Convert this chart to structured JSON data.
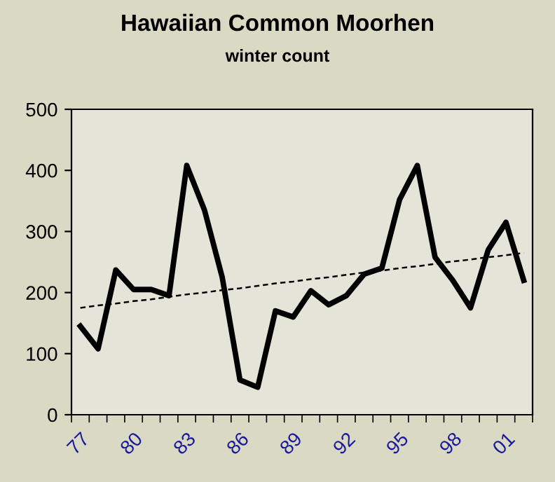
{
  "chart_data": {
    "type": "line",
    "title": "Hawaiian Common Moorhen",
    "subtitle": "winter count",
    "categories": [
      "77",
      null,
      null,
      "80",
      null,
      null,
      "83",
      null,
      null,
      "86",
      null,
      null,
      "89",
      null,
      null,
      "92",
      null,
      null,
      "95",
      null,
      null,
      "98",
      null,
      null,
      "01",
      null
    ],
    "series": [
      {
        "color": "#000000",
        "values": [
          145,
          108,
          237,
          205,
          205,
          195,
          408,
          335,
          225,
          57,
          45,
          170,
          160,
          203,
          180,
          195,
          230,
          240,
          352,
          408,
          258,
          220,
          175,
          270,
          315,
          220
        ],
        "line_style": "solid"
      },
      {
        "type": "line",
        "color": "#000000",
        "values": [
          175,
          179,
          182,
          186,
          189,
          193,
          197,
          200,
          204,
          207,
          211,
          215,
          218,
          222,
          225,
          229,
          233,
          236,
          240,
          243,
          247,
          251,
          254,
          258,
          261,
          265
        ],
        "line_style": "dashed"
      }
    ],
    "ylim": [
      0,
      500
    ],
    "yticks": [
      0,
      100,
      200,
      300,
      400,
      500
    ],
    "grid": false,
    "marker": "none"
  }
}
